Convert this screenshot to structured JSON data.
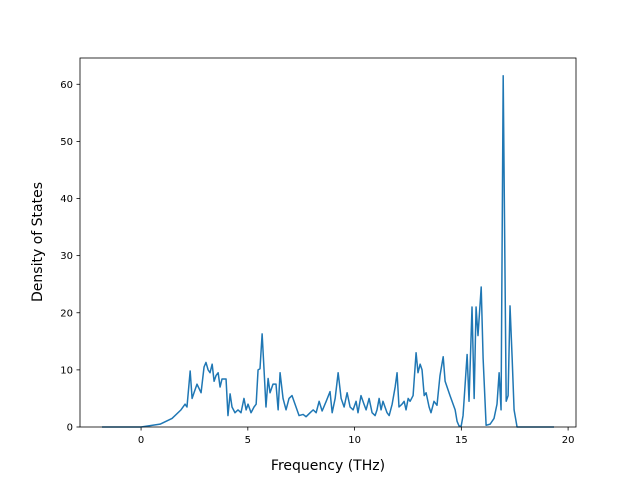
{
  "chart_data": {
    "type": "line",
    "xlabel": "Frequency (THz)",
    "ylabel": "Density of States",
    "color": "#1f77b4",
    "xlim": [
      -2.86,
      20.37
    ],
    "ylim": [
      0,
      64.6
    ],
    "xticks": [
      0,
      5,
      10,
      15,
      20
    ],
    "yticks": [
      0,
      10,
      20,
      30,
      40,
      50,
      60
    ],
    "x": [
      -1.83,
      0,
      0.89,
      1.45,
      1.87,
      2.06,
      2.15,
      2.3,
      2.39,
      2.48,
      2.62,
      2.81,
      2.95,
      3.04,
      3.14,
      3.23,
      3.33,
      3.42,
      3.51,
      3.61,
      3.7,
      3.79,
      3.98,
      4.07,
      4.17,
      4.26,
      4.4,
      4.54,
      4.68,
      4.82,
      4.92,
      5.01,
      5.15,
      5.29,
      5.39,
      5.48,
      5.57,
      5.67,
      5.76,
      5.85,
      5.95,
      6.04,
      6.18,
      6.32,
      6.42,
      6.51,
      6.65,
      6.79,
      6.93,
      7.07,
      7.21,
      7.4,
      7.59,
      7.73,
      7.92,
      8.06,
      8.2,
      8.34,
      8.48,
      8.67,
      8.85,
      8.95,
      9.09,
      9.23,
      9.37,
      9.51,
      9.65,
      9.79,
      9.93,
      10.07,
      10.16,
      10.3,
      10.44,
      10.54,
      10.68,
      10.82,
      10.96,
      11.05,
      11.15,
      11.24,
      11.33,
      11.52,
      11.62,
      11.76,
      11.9,
      11.99,
      12.08,
      12.22,
      12.32,
      12.41,
      12.51,
      12.6,
      12.74,
      12.88,
      12.97,
      13.07,
      13.16,
      13.26,
      13.35,
      13.49,
      13.58,
      13.72,
      13.86,
      14.0,
      14.15,
      14.24,
      14.47,
      14.71,
      14.8,
      14.89,
      14.99,
      15.08,
      15.27,
      15.36,
      15.5,
      15.6,
      15.69,
      15.78,
      15.93,
      16.02,
      16.16,
      16.35,
      16.53,
      16.67,
      16.77,
      16.86,
      16.96,
      17.1,
      17.19,
      17.28,
      17.38,
      17.47,
      17.61,
      19.34
    ],
    "values": [
      0,
      0,
      0.5,
      1.5,
      3,
      4,
      3.5,
      9.8,
      5,
      6,
      7.5,
      6,
      10.5,
      11.3,
      10,
      9.5,
      11,
      8,
      9,
      9.5,
      7,
      8.4,
      8.4,
      2,
      5.8,
      3.5,
      2.5,
      3,
      2.5,
      5,
      3,
      4,
      2.5,
      3.5,
      4,
      10,
      10.2,
      16.3,
      10,
      3.5,
      8.5,
      6,
      7.5,
      7.5,
      3,
      9.5,
      5,
      3,
      5,
      5.5,
      4,
      2,
      2.2,
      1.8,
      2.5,
      3,
      2.5,
      4.5,
      2.8,
      4.5,
      6.2,
      2.5,
      5,
      9.5,
      5,
      3.5,
      6,
      3.5,
      3,
      4.5,
      2.5,
      5.5,
      4,
      3,
      5,
      2.5,
      2,
      3,
      5,
      3,
      4.5,
      2.5,
      2,
      4,
      7,
      9.5,
      3.5,
      4,
      4.5,
      3,
      5,
      4.5,
      5.5,
      13,
      9.5,
      11,
      10,
      5.5,
      6,
      3.5,
      2.5,
      4.5,
      3.8,
      9,
      12.3,
      8,
      5.5,
      3,
      1,
      0.2,
      0.1,
      2,
      12.7,
      4.5,
      21,
      5,
      21,
      16,
      24.5,
      12,
      0.3,
      0.5,
      1.5,
      4,
      9.5,
      3,
      61.5,
      4.5,
      5.5,
      21.2,
      12,
      3,
      0,
      0
    ]
  }
}
